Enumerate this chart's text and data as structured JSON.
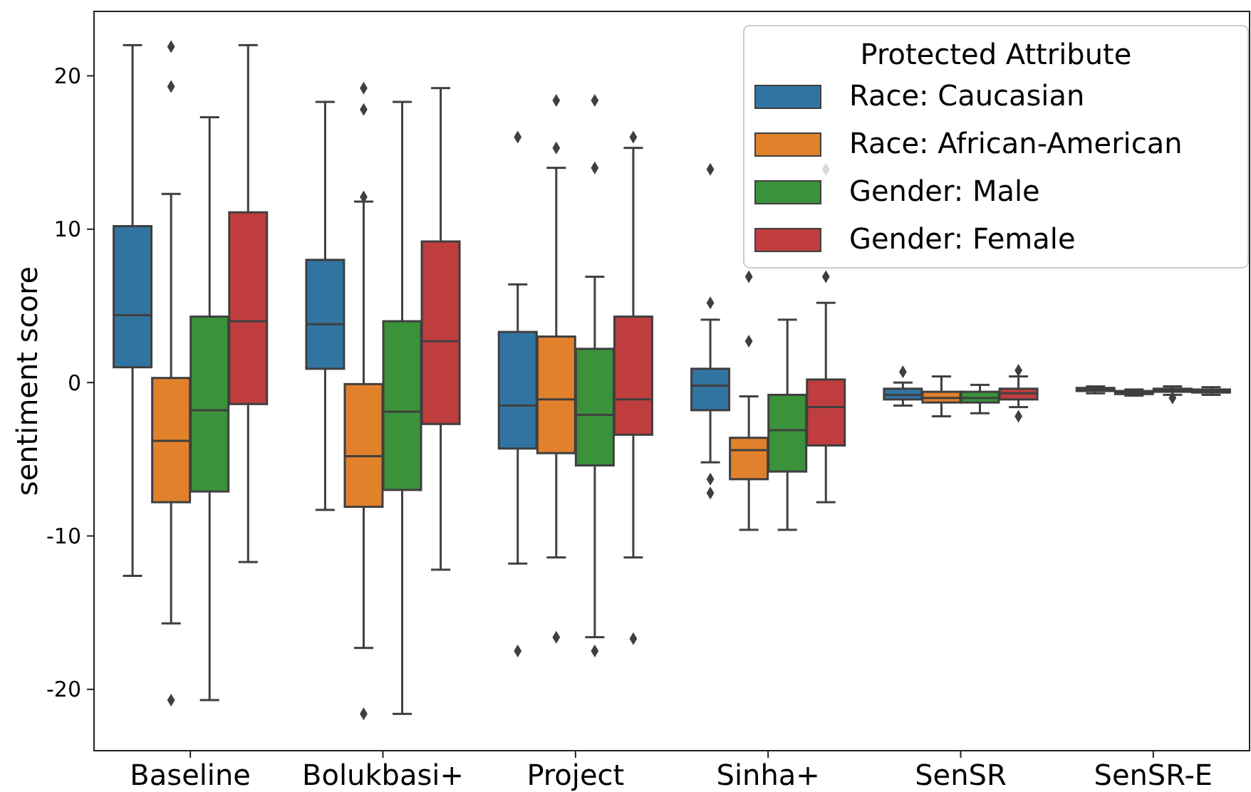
{
  "chart_data": {
    "type": "box",
    "ylabel": "sentiment score",
    "categories": [
      "Baseline",
      "Bolukbasi+",
      "Project",
      "Sinha+",
      "SenSR",
      "SenSR-E"
    ],
    "ylim": [
      -24,
      24.2
    ],
    "yticks": [
      -20,
      -10,
      0,
      10,
      20
    ],
    "grid": false,
    "legend": "top right",
    "legend_title": "Protected Attribute",
    "marker": "diamond",
    "series": [
      {
        "name": "Race: Caucasian",
        "color": "#3274a1",
        "boxes": [
          {
            "low": -12.6,
            "q1": 1.0,
            "median": 4.4,
            "q3": 10.2,
            "high": 22.0
          },
          {
            "low": -8.3,
            "q1": 0.9,
            "median": 3.8,
            "q3": 8.0,
            "high": 18.3
          },
          {
            "low": -11.8,
            "q1": -4.3,
            "median": -1.5,
            "q3": 3.3,
            "high": 6.4,
            "outliers": [
              16.0,
              -17.5
            ]
          },
          {
            "low": -5.2,
            "q1": -1.8,
            "median": -0.2,
            "q3": 0.9,
            "high": 4.1,
            "outliers": [
              13.9,
              5.2,
              -6.3,
              -7.2
            ]
          },
          {
            "low": -1.5,
            "q1": -1.1,
            "median": -0.8,
            "q3": -0.4,
            "high": 0.0,
            "outliers": [
              0.7
            ]
          },
          {
            "low": -0.7,
            "q1": -0.55,
            "median": -0.45,
            "q3": -0.35,
            "high": -0.25
          }
        ]
      },
      {
        "name": "Race: African-American",
        "color": "#e1812c",
        "boxes": [
          {
            "low": -15.7,
            "q1": -7.8,
            "median": -3.8,
            "q3": 0.3,
            "high": 12.3,
            "outliers": [
              21.9,
              19.3,
              -20.7
            ]
          },
          {
            "low": -17.3,
            "q1": -8.1,
            "median": -4.8,
            "q3": -0.1,
            "high": 11.8,
            "outliers": [
              19.2,
              17.8,
              12.1,
              -21.6
            ]
          },
          {
            "low": -11.4,
            "q1": -4.6,
            "median": -1.1,
            "q3": 3.0,
            "high": 14.0,
            "outliers": [
              18.4,
              15.3,
              -16.6
            ]
          },
          {
            "low": -9.6,
            "q1": -6.3,
            "median": -4.4,
            "q3": -3.6,
            "high": -0.9,
            "outliers": [
              6.9,
              2.7
            ]
          },
          {
            "low": -2.2,
            "q1": -1.3,
            "median": -1.0,
            "q3": -0.6,
            "high": 0.4
          },
          {
            "low": -0.85,
            "q1": -0.75,
            "median": -0.65,
            "q3": -0.55,
            "high": -0.45
          }
        ]
      },
      {
        "name": "Gender: Male",
        "color": "#3a923a",
        "boxes": [
          {
            "low": -20.7,
            "q1": -7.1,
            "median": -1.8,
            "q3": 4.3,
            "high": 17.3
          },
          {
            "low": -21.6,
            "q1": -7.0,
            "median": -1.9,
            "q3": 4.0,
            "high": 18.3
          },
          {
            "low": -16.6,
            "q1": -5.4,
            "median": -2.1,
            "q3": 2.2,
            "high": 6.9,
            "outliers": [
              18.4,
              14.0,
              -17.5
            ]
          },
          {
            "low": -9.6,
            "q1": -5.8,
            "median": -3.1,
            "q3": -0.8,
            "high": 4.1
          },
          {
            "low": -2.0,
            "q1": -1.3,
            "median": -1.0,
            "q3": -0.6,
            "high": -0.15
          },
          {
            "low": -0.8,
            "q1": -0.6,
            "median": -0.5,
            "q3": -0.4,
            "high": -0.25,
            "outliers": [
              -1.0
            ]
          }
        ]
      },
      {
        "name": "Gender: Female",
        "color": "#c03d3e",
        "boxes": [
          {
            "low": -11.7,
            "q1": -1.4,
            "median": 4.0,
            "q3": 11.1,
            "high": 22.0
          },
          {
            "low": -12.2,
            "q1": -2.7,
            "median": 2.7,
            "q3": 9.2,
            "high": 19.2
          },
          {
            "low": -11.4,
            "q1": -3.4,
            "median": -1.1,
            "q3": 4.3,
            "high": 15.3,
            "outliers": [
              16.0,
              -16.7
            ]
          },
          {
            "low": -7.8,
            "q1": -4.1,
            "median": -1.6,
            "q3": 0.2,
            "high": 5.2,
            "outliers": [
              13.9,
              6.9
            ]
          },
          {
            "low": -1.6,
            "q1": -1.1,
            "median": -0.7,
            "q3": -0.4,
            "high": 0.4,
            "outliers": [
              0.8,
              -2.2
            ]
          },
          {
            "low": -0.8,
            "q1": -0.65,
            "median": -0.55,
            "q3": -0.45,
            "high": -0.3
          }
        ]
      }
    ]
  }
}
